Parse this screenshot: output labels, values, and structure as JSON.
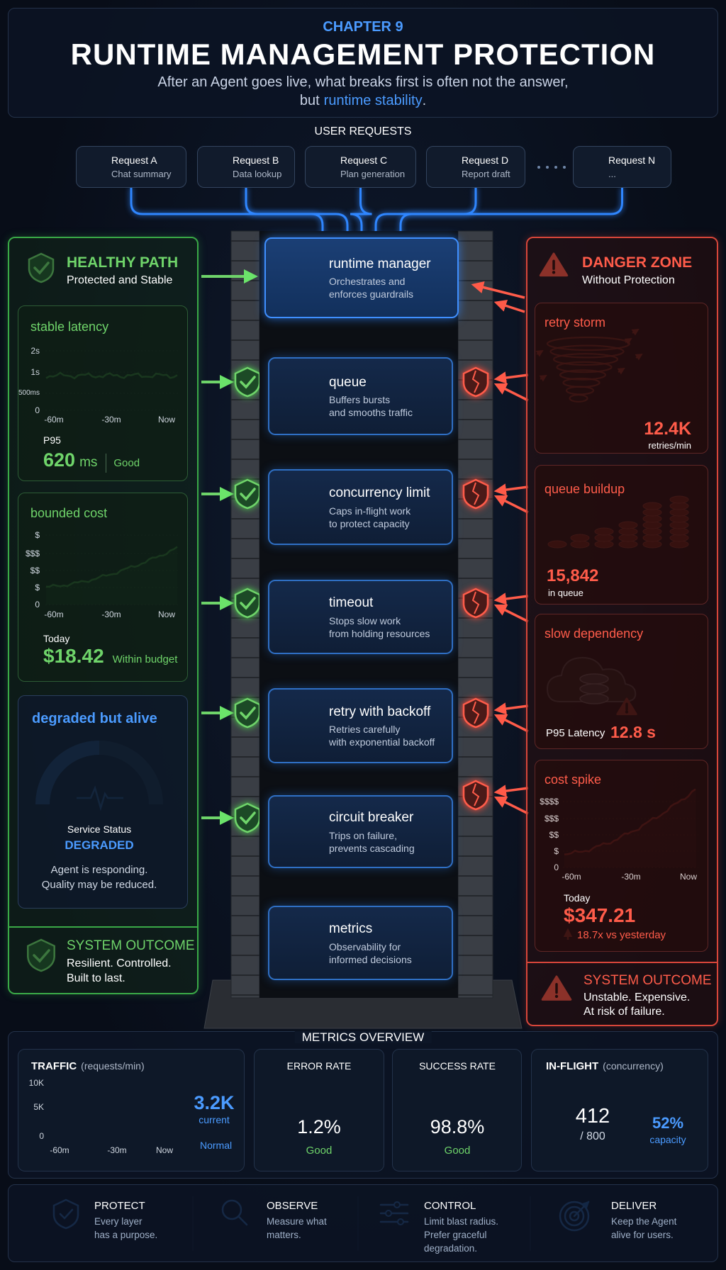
{
  "header": {
    "chapter": "CHAPTER 9",
    "title": "RUNTIME MANAGEMENT PROTECTION",
    "subtitle": "After an Agent goes live, what breaks first is often not the answer,",
    "subtitle_line2": [
      "but",
      "runtime stability",
      "."
    ]
  },
  "requests": {
    "label": "USER REQUESTS",
    "items": [
      {
        "name": "Request A",
        "desc": "Chat summary"
      },
      {
        "name": "Request B",
        "desc": "Data lookup"
      },
      {
        "name": "Request C",
        "desc": "Plan generation"
      },
      {
        "name": "Request D",
        "desc": "Report draft"
      },
      {
        "name": "Request N",
        "desc": "..."
      }
    ]
  },
  "healthy": {
    "title": "HEALTHY PATH",
    "subtitle": "Protected and Stable",
    "latency": {
      "title": "stable latency",
      "yticks": [
        "2s",
        "1s",
        "500ms",
        "0"
      ],
      "xticks": [
        "-60m",
        "-30m",
        "Now"
      ],
      "metric_label": "P95",
      "value": "620",
      "unit": "ms",
      "status": "Good"
    },
    "cost": {
      "title": "bounded cost",
      "yticks": [
        "$",
        "$$$",
        "$$",
        "$",
        "0"
      ],
      "xticks": [
        "-60m",
        "-30m",
        "Now"
      ],
      "label": "Today",
      "value": "$18.42",
      "status": "Within budget"
    },
    "degraded": {
      "title": "degraded but alive",
      "status_label": "Service Status",
      "status": "DEGRADED",
      "note": [
        "Agent is responding.",
        "Quality may be reduced."
      ]
    },
    "outcome": {
      "title": "SYSTEM OUTCOME",
      "lines": [
        "Resilient. Controlled.",
        "Built to last."
      ]
    }
  },
  "layers": [
    {
      "name": "runtime manager",
      "desc": [
        "Orchestrates and",
        "enforces guardrails"
      ]
    },
    {
      "name": "queue",
      "desc": [
        "Buffers bursts",
        "and smooths traffic"
      ]
    },
    {
      "name": "concurrency limit",
      "desc": [
        "Caps in-flight work",
        "to protect capacity"
      ]
    },
    {
      "name": "timeout",
      "desc": [
        "Stops slow work",
        "from holding resources"
      ]
    },
    {
      "name": "retry with backoff",
      "desc": [
        "Retries carefully",
        "with exponential backoff"
      ]
    },
    {
      "name": "circuit breaker",
      "desc": [
        "Trips on failure,",
        "prevents cascading"
      ]
    },
    {
      "name": "metrics",
      "desc": [
        "Observability for",
        "informed decisions"
      ]
    }
  ],
  "danger": {
    "title": "DANGER ZONE",
    "subtitle": "Without Protection",
    "retry": {
      "title": "retry storm",
      "value": "12.4K",
      "unit": "retries/min"
    },
    "queue": {
      "title": "queue buildup",
      "value": "15,842",
      "unit": "in queue"
    },
    "slow": {
      "title": "slow dependency",
      "label": "P95 Latency",
      "value": "12.8 s"
    },
    "cost": {
      "title": "cost spike",
      "yticks": [
        "$$$$",
        "$$$",
        "$$",
        "$",
        "0"
      ],
      "xticks": [
        "-60m",
        "-30m",
        "Now"
      ],
      "label": "Today",
      "value": "$347.21",
      "change": "18.7x vs yesterday"
    },
    "outcome": {
      "title": "SYSTEM OUTCOME",
      "lines": [
        "Unstable. Expensive.",
        "At risk of failure."
      ]
    }
  },
  "metrics": {
    "title": "METRICS OVERVIEW",
    "traffic": {
      "title": "TRAFFIC",
      "unit": "(requests/min)",
      "yticks": [
        "10K",
        "5K",
        "0"
      ],
      "xticks": [
        "-60m",
        "-30m",
        "Now"
      ],
      "value": "3.2K",
      "value_label": "current",
      "status": "Normal"
    },
    "error": {
      "title": "ERROR RATE",
      "value": "1.2%",
      "status": "Good"
    },
    "success": {
      "title": "SUCCESS RATE",
      "value": "98.8%",
      "status": "Good"
    },
    "inflight": {
      "title": "IN-FLIGHT",
      "unit": "(concurrency)",
      "value": "412",
      "max": "/ 800",
      "percent": "52%",
      "percent_label": "capacity"
    }
  },
  "principles": [
    {
      "title": "PROTECT",
      "desc": [
        "Every layer",
        "has a purpose."
      ]
    },
    {
      "title": "OBSERVE",
      "desc": [
        "Measure what",
        "matters."
      ]
    },
    {
      "title": "CONTROL",
      "desc": [
        "Limit blast radius.",
        "Prefer graceful",
        "degradation."
      ]
    },
    {
      "title": "DELIVER",
      "desc": [
        "Keep the Agent",
        "alive for users."
      ]
    }
  ]
}
